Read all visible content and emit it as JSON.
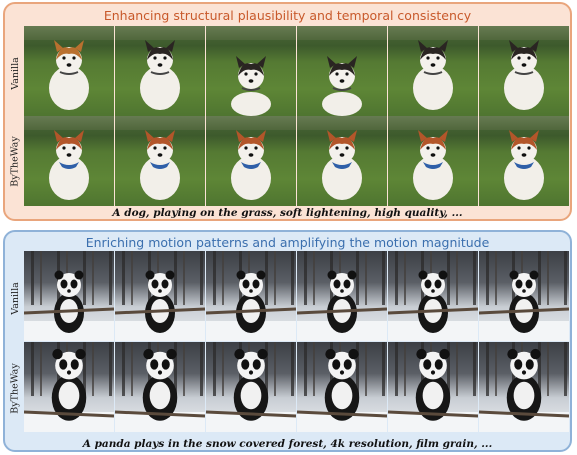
{
  "dog_panel": {
    "title": "Enhancing structural plausibility and temporal consistency",
    "row1_label": "Vanilla",
    "row2_label": "ByTheWay",
    "caption": "A dog, playing on the grass, soft lightening, high quality, ...",
    "frames_per_row": 6,
    "accent": "#c8592b",
    "border": "#e9a57c",
    "background": "#fbe3d5"
  },
  "panda_panel": {
    "title": "Enriching motion patterns and amplifying the motion magnitude",
    "row1_label": "Vanilla",
    "row2_label": "ByTheWay",
    "caption": "A panda plays in the snow covered forest, 4k resolution, film grain, ...",
    "frames_per_row": 6,
    "accent": "#3b6fae",
    "border": "#8fb2d8",
    "background": "#dce9f6"
  }
}
